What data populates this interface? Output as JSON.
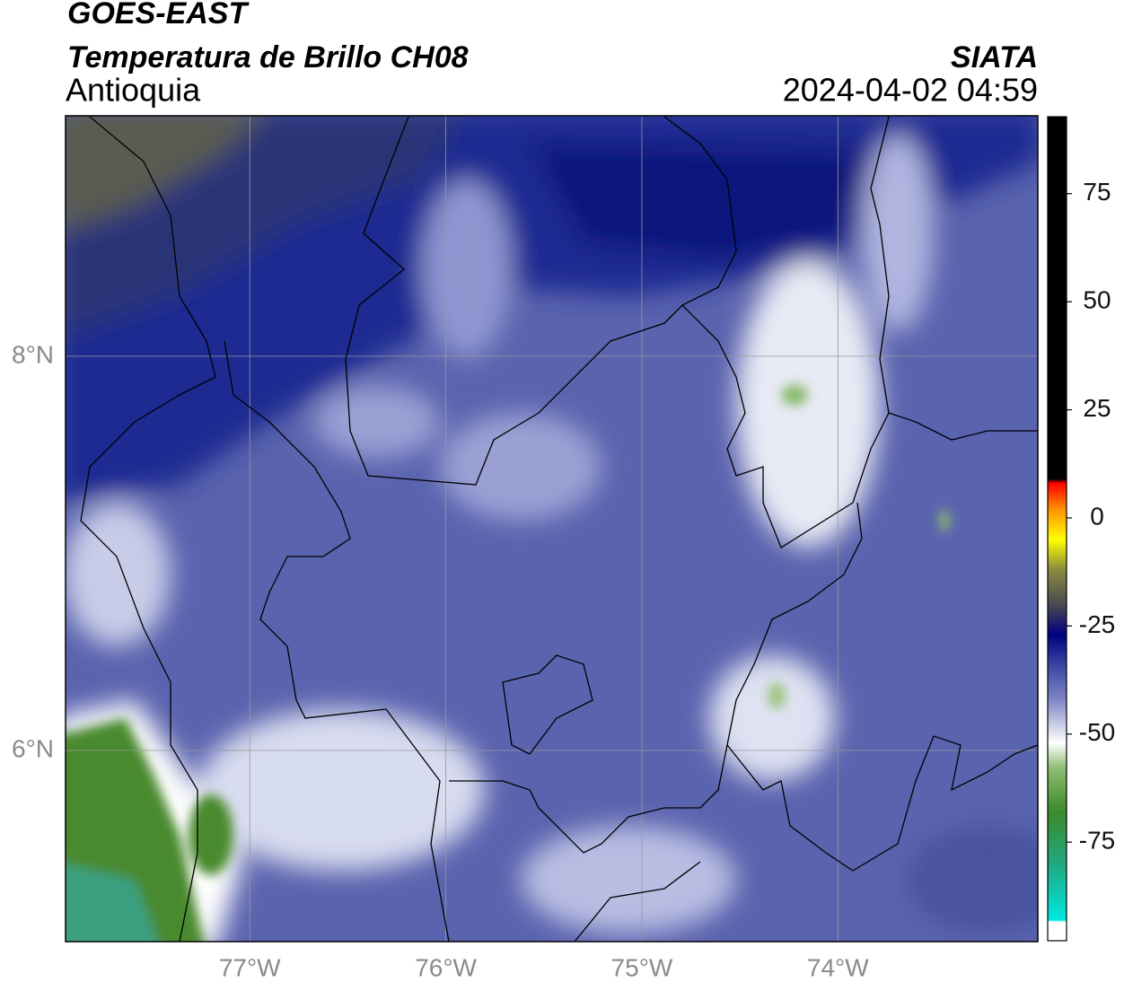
{
  "header": {
    "satellite": "GOES-EAST",
    "product": "Temperatura de Brillo CH08",
    "region": "Antioquia",
    "agency": "SIATA",
    "datetime": "2024-04-02 04:59"
  },
  "map": {
    "xlim": [
      -77.94,
      -72.98
    ],
    "ylim": [
      5.03,
      9.22
    ],
    "xticks": [
      {
        "value": -77,
        "label": "77°W"
      },
      {
        "value": -76,
        "label": "76°W"
      },
      {
        "value": -75,
        "label": "75°W"
      },
      {
        "value": -74,
        "label": "74°W"
      }
    ],
    "yticks": [
      {
        "value": 6,
        "label": "6°N"
      },
      {
        "value": 8,
        "label": "8°N"
      }
    ],
    "grid": true
  },
  "colorbar": {
    "lim": [
      -97.8,
      92.8
    ],
    "ticks": [
      -75,
      -50,
      -25,
      0,
      25,
      50,
      75
    ],
    "colors": [
      {
        "value": -97.8,
        "color": "#ffffff"
      },
      {
        "value": -93.5,
        "color": "#ffffff"
      },
      {
        "value": -93,
        "color": "#00e8e0"
      },
      {
        "value": -80,
        "color": "#20a880"
      },
      {
        "value": -68,
        "color": "#3c8a2a"
      },
      {
        "value": -58,
        "color": "#8cbc70"
      },
      {
        "value": -52,
        "color": "#ffffff"
      },
      {
        "value": -42,
        "color": "#7e86c4"
      },
      {
        "value": -33,
        "color": "#303c9c"
      },
      {
        "value": -27,
        "color": "#000080"
      },
      {
        "value": -20,
        "color": "#4a4a50"
      },
      {
        "value": -12,
        "color": "#8a8a40"
      },
      {
        "value": -5,
        "color": "#ffff00"
      },
      {
        "value": 2,
        "color": "#ff9000"
      },
      {
        "value": 8,
        "color": "#ff0000"
      },
      {
        "value": 9,
        "color": "#000000"
      },
      {
        "value": 92.8,
        "color": "#000000"
      }
    ]
  }
}
